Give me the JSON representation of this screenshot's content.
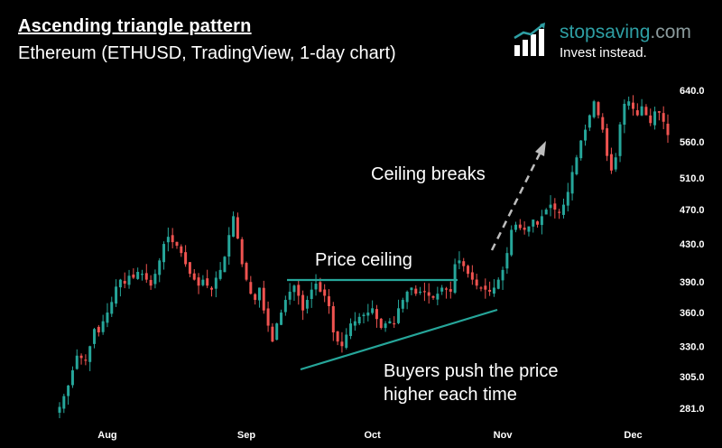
{
  "header": {
    "title": "Ascending triangle pattern",
    "subtitle": "Ethereum (ETHUSD, TradingView, 1-day chart)"
  },
  "brand": {
    "name": "stopsaving",
    "tld": ".com",
    "tagline": "Invest instead.",
    "logo_icon": "bar-chart-arrow-icon"
  },
  "annotations": {
    "ceiling_breaks": "Ceiling breaks",
    "price_ceiling": "Price ceiling",
    "buyers_line1": "Buyers push the price",
    "buyers_line2": "higher each time"
  },
  "colors": {
    "up": "#26a69a",
    "down": "#ef5350",
    "trendline": "#26a69a",
    "arrow": "#bdbdbd",
    "brand": "#2e9fa4"
  },
  "chart_data": {
    "type": "candlestick",
    "title": "Ascending triangle pattern",
    "subtitle": "Ethereum (ETHUSD, TradingView, 1-day chart)",
    "yscale": "log",
    "ylim": [
      270,
      660
    ],
    "y_ticks": [
      "640.0",
      "560.0",
      "510.0",
      "470.0",
      "430.0",
      "390.0",
      "360.0",
      "330.0",
      "305.0",
      "281.0"
    ],
    "y_tick_values": [
      640,
      560,
      510,
      470,
      430,
      390,
      360,
      330,
      305,
      281
    ],
    "x_ticks": [
      "Aug",
      "Sep",
      "Oct",
      "Nov",
      "Dec"
    ],
    "x_tick_index": [
      11,
      43,
      72,
      102,
      132
    ],
    "grid": false,
    "close": [
      282,
      290,
      298,
      310,
      322,
      320,
      318,
      330,
      345,
      342,
      352,
      360,
      370,
      385,
      392,
      388,
      396,
      394,
      400,
      398,
      392,
      386,
      398,
      412,
      430,
      438,
      432,
      428,
      420,
      408,
      398,
      392,
      386,
      392,
      386,
      382,
      394,
      402,
      416,
      440,
      462,
      436,
      408,
      392,
      378,
      372,
      384,
      362,
      348,
      334,
      350,
      360,
      372,
      380,
      386,
      376,
      362,
      372,
      382,
      388,
      380,
      376,
      366,
      342,
      334,
      330,
      340,
      350,
      352,
      356,
      358,
      360,
      364,
      354,
      346,
      350,
      352,
      350,
      364,
      372,
      380,
      384,
      378,
      380,
      380,
      376,
      374,
      378,
      384,
      382,
      380,
      408,
      412,
      406,
      398,
      392,
      386,
      384,
      382,
      380,
      384,
      392,
      402,
      420,
      446,
      452,
      448,
      446,
      450,
      458,
      452,
      462,
      470,
      476,
      470,
      466,
      476,
      492,
      518,
      538,
      562,
      578,
      600,
      622,
      600,
      578,
      540,
      520,
      538,
      586,
      618,
      622,
      610,
      600,
      614,
      600,
      588,
      606,
      604,
      590,
      570
    ]
  },
  "axis": {
    "y_labels": [
      "640.0",
      "560.0",
      "510.0",
      "470.0",
      "430.0",
      "390.0",
      "360.0",
      "330.0",
      "305.0",
      "281.0"
    ],
    "x_labels": [
      "Aug",
      "Sep",
      "Oct",
      "Nov",
      "Dec"
    ]
  }
}
